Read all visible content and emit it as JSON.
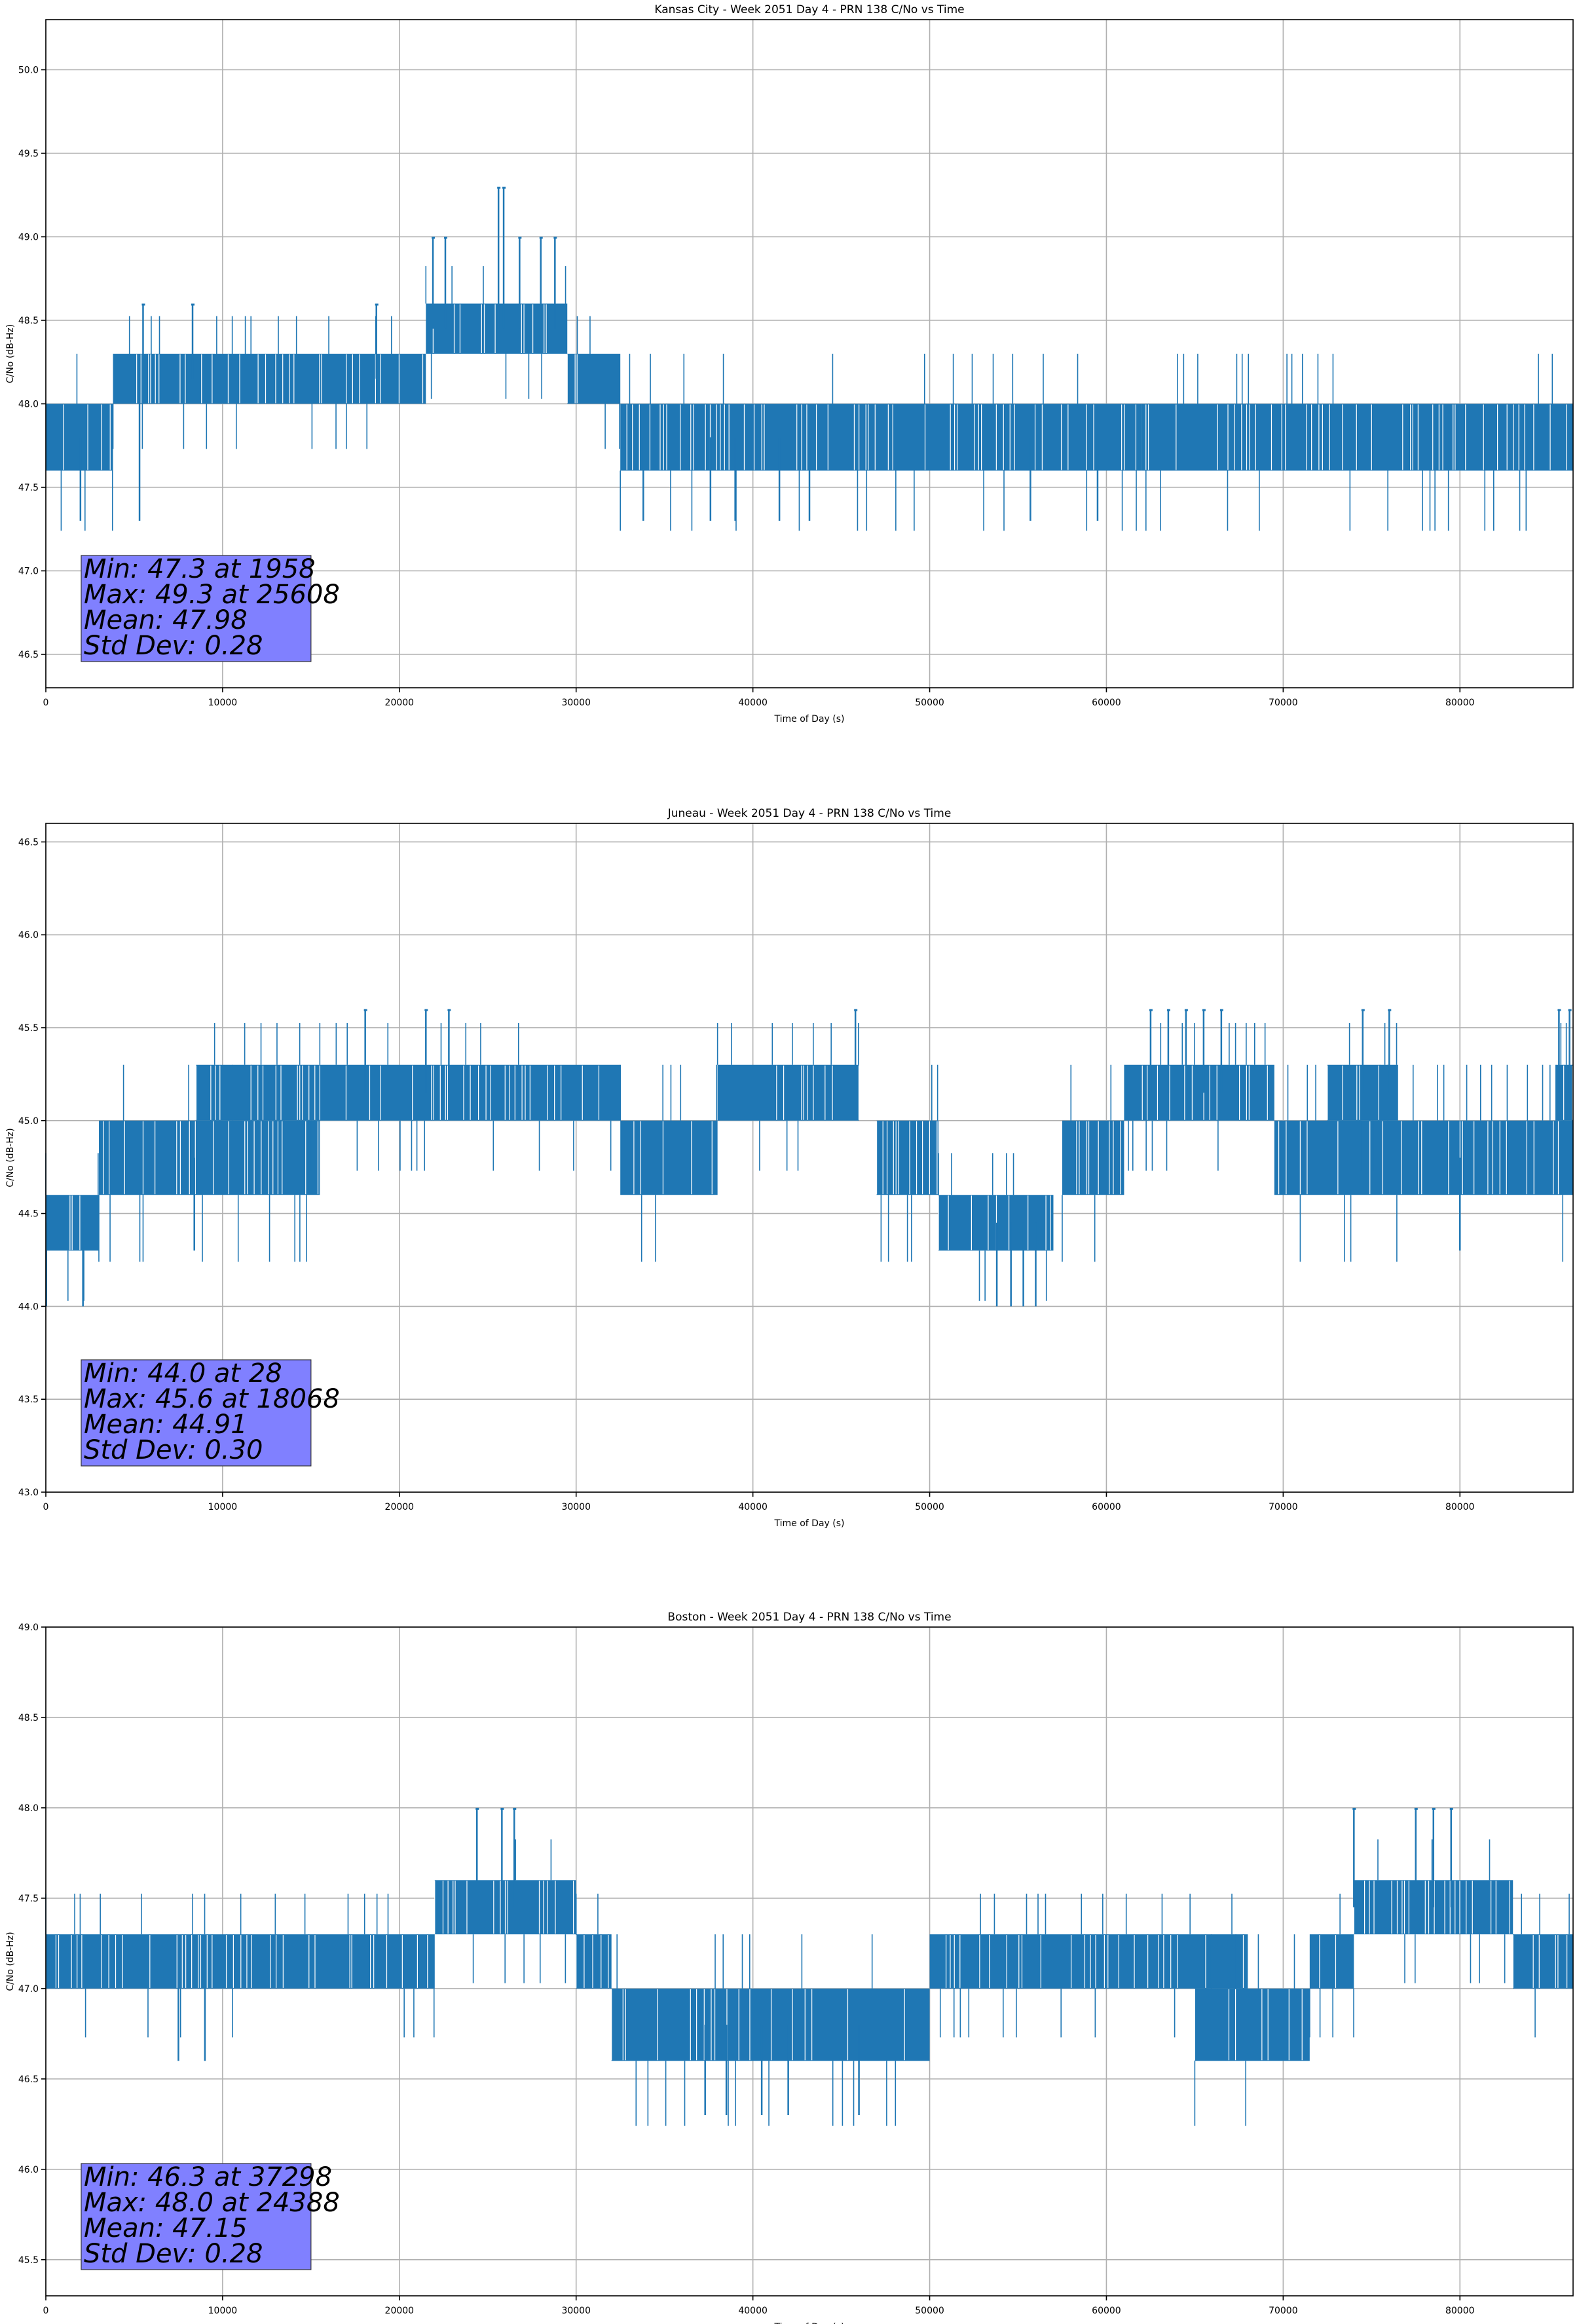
{
  "chart_data": [
    {
      "type": "line",
      "title": "Kansas City - Week 2051 Day 4 - PRN 138 C/No vs Time",
      "xlabel": "Time of Day (s)",
      "ylabel": "C/No (dB-Hz)",
      "xlim": [
        0,
        86400
      ],
      "ylim": [
        46.3,
        50.3
      ],
      "xticks": [
        0,
        10000,
        20000,
        30000,
        40000,
        50000,
        60000,
        70000,
        80000
      ],
      "yticks": [
        46.5,
        47.0,
        47.5,
        48.0,
        48.5,
        49.0,
        49.5,
        50.0
      ],
      "ytick_labels": [
        "46.5",
        "47.0",
        "47.5",
        "48.0",
        "48.5",
        "49.0",
        "49.5",
        "50.0"
      ],
      "grid": true,
      "color": "#1f77b4",
      "stats": [
        "Min: 47.3 at 1958",
        "Max: 49.3 at 25608",
        "Mean: 47.98",
        "Std Dev: 0.28"
      ],
      "segments": [
        {
          "x": [
            0,
            3800
          ],
          "lo": 47.6,
          "hi": 48.0
        },
        {
          "x": [
            3800,
            17000
          ],
          "lo": 48.0,
          "hi": 48.3
        },
        {
          "x": [
            17000,
            21500
          ],
          "lo": 48.0,
          "hi": 48.3
        },
        {
          "x": [
            21500,
            29500
          ],
          "lo": 48.3,
          "hi": 48.6
        },
        {
          "x": [
            29500,
            32500
          ],
          "lo": 48.0,
          "hi": 48.3
        },
        {
          "x": [
            32500,
            62000
          ],
          "lo": 47.6,
          "hi": 48.0
        },
        {
          "x": [
            62000,
            86400
          ],
          "lo": 47.6,
          "hi": 48.0
        }
      ],
      "spikes": [
        {
          "x": 1958,
          "y": 47.3
        },
        {
          "x": 5500,
          "y": 48.6
        },
        {
          "x": 8300,
          "y": 48.6
        },
        {
          "x": 18700,
          "y": 48.6
        },
        {
          "x": 21900,
          "y": 49.0
        },
        {
          "x": 22600,
          "y": 49.0
        },
        {
          "x": 25608,
          "y": 49.3
        },
        {
          "x": 25900,
          "y": 49.3
        },
        {
          "x": 26800,
          "y": 49.0
        },
        {
          "x": 28000,
          "y": 49.0
        },
        {
          "x": 28800,
          "y": 49.0
        },
        {
          "x": 5300,
          "y": 47.3
        },
        {
          "x": 33800,
          "y": 47.3
        },
        {
          "x": 37600,
          "y": 47.3
        },
        {
          "x": 39000,
          "y": 47.3
        },
        {
          "x": 41500,
          "y": 47.3
        },
        {
          "x": 43200,
          "y": 47.3
        },
        {
          "x": 55700,
          "y": 47.3
        },
        {
          "x": 59500,
          "y": 47.3
        }
      ]
    },
    {
      "type": "line",
      "title": "Juneau - Week 2051 Day 4 - PRN 138 C/No vs Time",
      "xlabel": "Time of Day (s)",
      "ylabel": "C/No (dB-Hz)",
      "xlim": [
        0,
        86400
      ],
      "ylim": [
        43.0,
        46.6
      ],
      "xticks": [
        0,
        10000,
        20000,
        30000,
        40000,
        50000,
        60000,
        70000,
        80000
      ],
      "yticks": [
        43.0,
        43.5,
        44.0,
        44.5,
        45.0,
        45.5,
        46.0,
        46.5
      ],
      "ytick_labels": [
        "43.0",
        "43.5",
        "44.0",
        "44.5",
        "45.0",
        "45.5",
        "46.0",
        "46.5"
      ],
      "grid": true,
      "color": "#1f77b4",
      "stats": [
        "Min: 44.0 at 28",
        "Max: 45.6 at 18068",
        "Mean: 44.91",
        "Std Dev: 0.30"
      ],
      "segments": [
        {
          "x": [
            0,
            3000
          ],
          "lo": 44.3,
          "hi": 44.6
        },
        {
          "x": [
            3000,
            5500
          ],
          "lo": 44.6,
          "hi": 45.0
        },
        {
          "x": [
            5500,
            15500
          ],
          "lo": 44.6,
          "hi": 45.0
        },
        {
          "x": [
            8500,
            15500
          ],
          "lo": 45.0,
          "hi": 45.3
        },
        {
          "x": [
            15500,
            32500
          ],
          "lo": 45.0,
          "hi": 45.3
        },
        {
          "x": [
            32500,
            38000
          ],
          "lo": 44.6,
          "hi": 45.0
        },
        {
          "x": [
            38000,
            46000
          ],
          "lo": 45.0,
          "hi": 45.3
        },
        {
          "x": [
            47000,
            50500
          ],
          "lo": 44.6,
          "hi": 45.0
        },
        {
          "x": [
            50500,
            57000
          ],
          "lo": 44.3,
          "hi": 44.6
        },
        {
          "x": [
            57500,
            61000
          ],
          "lo": 44.6,
          "hi": 45.0
        },
        {
          "x": [
            61000,
            69500
          ],
          "lo": 45.0,
          "hi": 45.3
        },
        {
          "x": [
            69500,
            86400
          ],
          "lo": 44.6,
          "hi": 45.0
        },
        {
          "x": [
            72500,
            76500
          ],
          "lo": 45.0,
          "hi": 45.3
        },
        {
          "x": [
            85400,
            86400
          ],
          "lo": 45.0,
          "hi": 45.3
        }
      ],
      "spikes": [
        {
          "x": 28,
          "y": 44.0
        },
        {
          "x": 2100,
          "y": 44.0
        },
        {
          "x": 8400,
          "y": 44.3
        },
        {
          "x": 18068,
          "y": 45.6
        },
        {
          "x": 21500,
          "y": 45.6
        },
        {
          "x": 22800,
          "y": 45.6
        },
        {
          "x": 45800,
          "y": 45.6
        },
        {
          "x": 53800,
          "y": 44.0
        },
        {
          "x": 54600,
          "y": 44.0
        },
        {
          "x": 55300,
          "y": 44.0
        },
        {
          "x": 56000,
          "y": 44.0
        },
        {
          "x": 62500,
          "y": 45.6
        },
        {
          "x": 63500,
          "y": 45.6
        },
        {
          "x": 64500,
          "y": 45.6
        },
        {
          "x": 65500,
          "y": 45.6
        },
        {
          "x": 66500,
          "y": 45.6
        },
        {
          "x": 74500,
          "y": 45.6
        },
        {
          "x": 76000,
          "y": 45.6
        },
        {
          "x": 85600,
          "y": 45.6
        },
        {
          "x": 86200,
          "y": 45.6
        },
        {
          "x": 80000,
          "y": 44.3
        }
      ]
    },
    {
      "type": "line",
      "title": "Boston - Week 2051 Day 4 - PRN 138 C/No vs Time",
      "xlabel": "Time of Day (s)",
      "ylabel": "C/No (dB-Hz)",
      "xlim": [
        0,
        86400
      ],
      "ylim": [
        45.3,
        49.0
      ],
      "xticks": [
        0,
        10000,
        20000,
        30000,
        40000,
        50000,
        60000,
        70000,
        80000
      ],
      "yticks": [
        45.5,
        46.0,
        46.5,
        47.0,
        47.5,
        48.0,
        48.5,
        49.0
      ],
      "ytick_labels": [
        "45.5",
        "46.0",
        "46.5",
        "47.0",
        "47.5",
        "48.0",
        "48.5",
        "49.0"
      ],
      "grid": true,
      "color": "#1f77b4",
      "stats": [
        "Min: 46.3 at 37298",
        "Max: 48.0 at 24388",
        "Mean: 47.15",
        "Std Dev: 0.28"
      ],
      "segments": [
        {
          "x": [
            0,
            22000
          ],
          "lo": 47.0,
          "hi": 47.3
        },
        {
          "x": [
            22000,
            30000
          ],
          "lo": 47.3,
          "hi": 47.6
        },
        {
          "x": [
            30000,
            32000
          ],
          "lo": 47.0,
          "hi": 47.3
        },
        {
          "x": [
            32000,
            50000
          ],
          "lo": 46.6,
          "hi": 47.0
        },
        {
          "x": [
            50000,
            68000
          ],
          "lo": 47.0,
          "hi": 47.3
        },
        {
          "x": [
            65000,
            71500
          ],
          "lo": 46.6,
          "hi": 47.0
        },
        {
          "x": [
            71500,
            74000
          ],
          "lo": 47.0,
          "hi": 47.3
        },
        {
          "x": [
            74000,
            83000
          ],
          "lo": 47.3,
          "hi": 47.6
        },
        {
          "x": [
            83000,
            86400
          ],
          "lo": 47.0,
          "hi": 47.3
        }
      ],
      "spikes": [
        {
          "x": 24388,
          "y": 48.0
        },
        {
          "x": 25800,
          "y": 48.0
        },
        {
          "x": 26500,
          "y": 48.0
        },
        {
          "x": 74000,
          "y": 48.0
        },
        {
          "x": 77500,
          "y": 48.0
        },
        {
          "x": 78500,
          "y": 48.0
        },
        {
          "x": 79500,
          "y": 48.0
        },
        {
          "x": 37298,
          "y": 46.3
        },
        {
          "x": 38500,
          "y": 46.3
        },
        {
          "x": 40500,
          "y": 46.3
        },
        {
          "x": 42000,
          "y": 46.3
        },
        {
          "x": 46000,
          "y": 46.3
        },
        {
          "x": 7500,
          "y": 46.6
        },
        {
          "x": 9000,
          "y": 46.6
        }
      ]
    }
  ]
}
